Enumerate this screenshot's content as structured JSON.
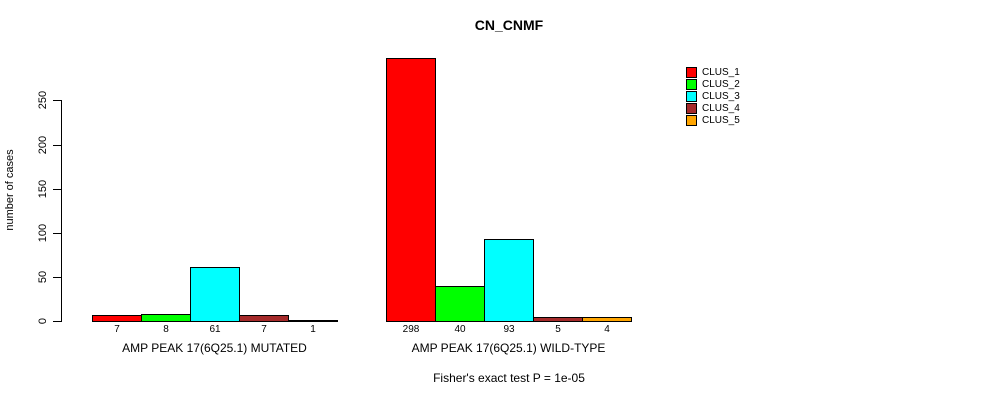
{
  "chart_data": {
    "type": "bar",
    "title": "CN_CNMF",
    "ylabel": "number of cases",
    "xlabel": "",
    "ylim": [
      0,
      250
    ],
    "yticks": [
      0,
      50,
      100,
      150,
      200,
      250
    ],
    "grid": false,
    "legend_position": "right-top",
    "series": [
      "CLUS_1",
      "CLUS_2",
      "CLUS_3",
      "CLUS_4",
      "CLUS_5"
    ],
    "colors": [
      "#FF0000",
      "#00FF00",
      "#00FFFF",
      "#A52A2A",
      "#FFA500"
    ],
    "groups": [
      {
        "label": "AMP PEAK 17(6Q25.1) MUTATED",
        "values": [
          7,
          8,
          61,
          7,
          1
        ]
      },
      {
        "label": "AMP PEAK 17(6Q25.1) WILD-TYPE",
        "values": [
          298,
          40,
          93,
          5,
          4
        ]
      }
    ],
    "annotation": "Fisher's exact test P = 1e-05"
  },
  "legend": {
    "items": [
      {
        "label": "CLUS_1",
        "color": "#FF0000"
      },
      {
        "label": "CLUS_2",
        "color": "#00FF00"
      },
      {
        "label": "CLUS_3",
        "color": "#00FFFF"
      },
      {
        "label": "CLUS_4",
        "color": "#A52A2A"
      },
      {
        "label": "CLUS_5",
        "color": "#FFA500"
      }
    ]
  }
}
